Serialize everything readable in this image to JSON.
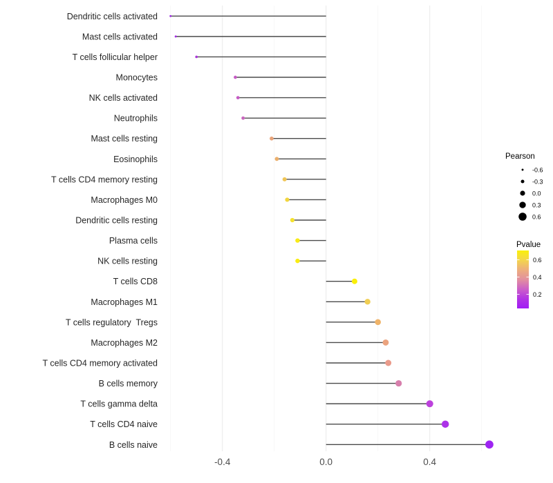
{
  "chart_data": {
    "type": "scatter",
    "subtype": "lollipop",
    "title": "",
    "xlabel": "",
    "ylabel": "",
    "orientation": "horizontal",
    "grid": true,
    "legend_position": "right",
    "categories": [
      "Dendritic cells activated",
      "Mast cells activated",
      "T cells follicular helper",
      "Monocytes",
      "NK cells activated",
      "Neutrophils",
      "Mast cells resting",
      "Eosinophils",
      "T cells CD4 memory resting",
      "Macrophages M0",
      "Dendritic cells resting",
      "Plasma cells",
      "NK cells resting",
      "T cells CD8",
      "Macrophages M1",
      "T cells regulatory  Tregs",
      "Macrophages M2",
      "T cells CD4 memory activated",
      "B cells memory",
      "T cells gamma delta",
      "T cells CD4 naive",
      "B cells naive"
    ],
    "series": [
      {
        "name": "Pearson",
        "values": [
          -0.6,
          -0.58,
          -0.5,
          -0.35,
          -0.34,
          -0.32,
          -0.21,
          -0.19,
          -0.16,
          -0.15,
          -0.13,
          -0.11,
          -0.11,
          0.11,
          0.16,
          0.2,
          0.23,
          0.24,
          0.28,
          0.4,
          0.46,
          0.63
        ]
      },
      {
        "name": "Pvalue",
        "values": [
          0.09,
          0.1,
          0.13,
          0.22,
          0.22,
          0.24,
          0.43,
          0.46,
          0.52,
          0.56,
          0.6,
          0.64,
          0.65,
          0.68,
          0.55,
          0.47,
          0.43,
          0.4,
          0.32,
          0.16,
          0.12,
          0.05
        ]
      }
    ],
    "point_colors": [
      "#9B27DF",
      "#A22BE3",
      "#A935D9",
      "#C55BC4",
      "#C55BC4",
      "#C967BE",
      "#E8A379",
      "#EBAF6C",
      "#F0C556",
      "#F2D63E",
      "#F5E22E",
      "#F8EA18",
      "#F9EC12",
      "#FAEF08",
      "#F0CE53",
      "#EFB369",
      "#EBA37E",
      "#EA9B8B",
      "#D77FAC",
      "#BC41DC",
      "#AC32E8",
      "#9E24F2"
    ],
    "stem_color": "#4a4a4a",
    "xlim": [
      -0.625,
      0.648
    ],
    "x_ticks": [
      -0.4,
      0.0,
      0.4
    ],
    "x_tick_labels": [
      "-0.4",
      "0.0",
      "0.4"
    ],
    "x_minor_ticks": [
      -0.6,
      -0.2,
      0.2,
      0.6
    ]
  },
  "legend": {
    "size_legend": {
      "title": "Pearson",
      "labels": [
        "-0.6",
        "-0.3",
        "0.0",
        "0.3",
        "0.6"
      ],
      "values": [
        -0.6,
        -0.3,
        0.0,
        0.3,
        0.6
      ],
      "key_color": "#000000"
    },
    "color_legend": {
      "title": "Pvalue",
      "tick_labels": [
        "0.6",
        "0.4",
        "0.2"
      ],
      "tick_values": [
        0.6,
        0.4,
        0.2
      ],
      "value_range": [
        0.03,
        0.7
      ],
      "gradient_stops_top_to_bottom": [
        "#FAF00A",
        "#F3D54C",
        "#EDAE7D",
        "#E2909F",
        "#CC60C8",
        "#B233E4",
        "#A11CF5"
      ]
    }
  },
  "colors": {
    "background": "#ffffff",
    "grid_major": "#ececec",
    "grid_minor": "#f5f5f5",
    "axis_text": "#4d4d4d",
    "category_text": "#262626"
  }
}
